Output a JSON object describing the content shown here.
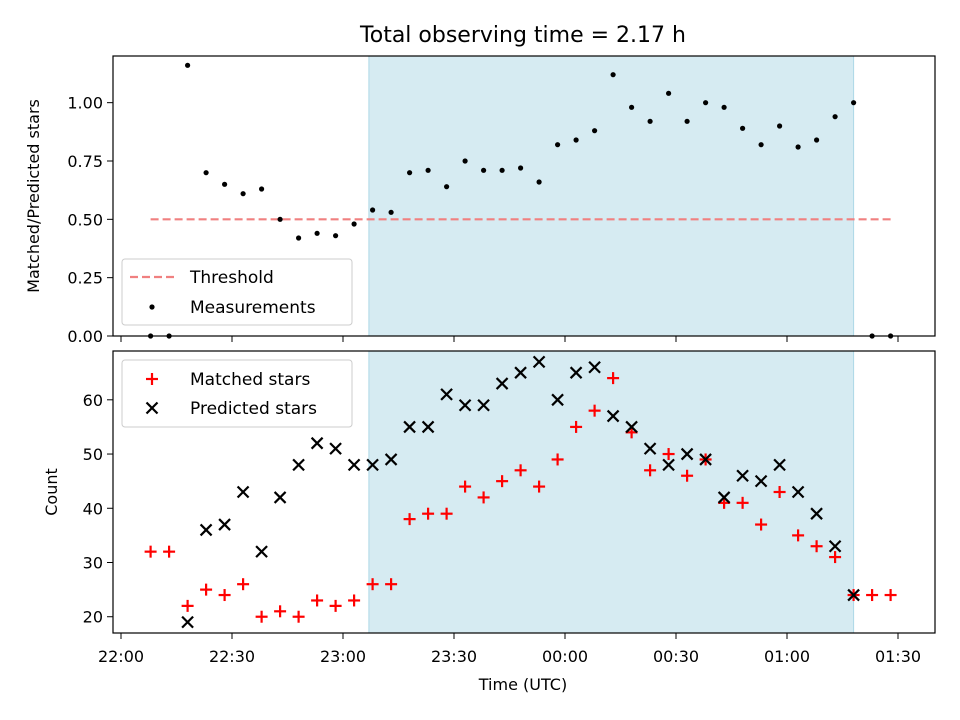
{
  "chart_data": [
    {
      "type": "scatter",
      "title": "Total observing time = 2.17 h",
      "ylabel": "Matched/Predicted stars",
      "xlabel": "",
      "ylim": [
        0,
        1.2
      ],
      "yticks": [
        "0.00",
        "0.25",
        "0.50",
        "0.75",
        "1.00"
      ],
      "highlight_span": {
        "start": "23:07",
        "end": "01:18",
        "color": "#add8e6"
      },
      "legend_position": "lower-left",
      "series": [
        {
          "name": "Threshold",
          "style": "dashed-line",
          "color": "#f08080",
          "x": [
            "22:08",
            "01:28"
          ],
          "y": [
            0.5,
            0.5
          ]
        },
        {
          "name": "Measurements",
          "style": "dot",
          "color": "#000000",
          "x": [
            "22:08",
            "22:13",
            "22:18",
            "22:23",
            "22:28",
            "22:33",
            "22:38",
            "22:43",
            "22:48",
            "22:53",
            "22:58",
            "23:03",
            "23:08",
            "23:13",
            "23:18",
            "23:23",
            "23:28",
            "23:33",
            "23:38",
            "23:43",
            "23:48",
            "23:53",
            "23:58",
            "00:03",
            "00:08",
            "00:13",
            "00:18",
            "00:23",
            "00:28",
            "00:33",
            "00:38",
            "00:43",
            "00:48",
            "00:53",
            "00:58",
            "01:03",
            "01:08",
            "01:13",
            "01:18",
            "01:23",
            "01:28"
          ],
          "y": [
            0.0,
            0.0,
            1.16,
            0.7,
            0.65,
            0.61,
            0.63,
            0.5,
            0.42,
            0.44,
            0.43,
            0.48,
            0.54,
            0.53,
            0.7,
            0.71,
            0.64,
            0.75,
            0.71,
            0.71,
            0.72,
            0.66,
            0.82,
            0.84,
            0.88,
            1.12,
            0.98,
            0.92,
            1.04,
            0.92,
            1.0,
            0.98,
            0.89,
            0.82,
            0.9,
            0.81,
            0.84,
            0.94,
            1.0,
            0.0,
            0.0
          ]
        }
      ]
    },
    {
      "type": "scatter",
      "title": "",
      "ylabel": "Count",
      "xlabel": "Time (UTC)",
      "ylim": [
        17,
        69
      ],
      "yticks": [
        "20",
        "30",
        "40",
        "50",
        "60"
      ],
      "xticks": [
        "22:00",
        "22:30",
        "23:00",
        "23:30",
        "00:00",
        "00:30",
        "01:00",
        "01:30"
      ],
      "highlight_span": {
        "start": "23:07",
        "end": "01:18",
        "color": "#add8e6"
      },
      "legend_position": "upper-left",
      "series": [
        {
          "name": "Matched stars",
          "style": "plus",
          "color": "#ff0000",
          "x": [
            "22:08",
            "22:13",
            "22:18",
            "22:23",
            "22:28",
            "22:33",
            "22:38",
            "22:43",
            "22:48",
            "22:53",
            "22:58",
            "23:03",
            "23:08",
            "23:13",
            "23:18",
            "23:23",
            "23:28",
            "23:33",
            "23:38",
            "23:43",
            "23:48",
            "23:53",
            "23:58",
            "00:03",
            "00:08",
            "00:13",
            "00:18",
            "00:23",
            "00:28",
            "00:33",
            "00:38",
            "00:43",
            "00:48",
            "00:53",
            "00:58",
            "01:03",
            "01:08",
            "01:13",
            "01:18",
            "01:23",
            "01:28"
          ],
          "y": [
            32,
            32,
            22,
            25,
            24,
            26,
            20,
            21,
            20,
            23,
            22,
            23,
            26,
            26,
            38,
            39,
            39,
            44,
            42,
            45,
            47,
            44,
            49,
            55,
            58,
            64,
            54,
            47,
            50,
            46,
            49,
            41,
            41,
            37,
            43,
            35,
            33,
            31,
            24,
            24,
            24
          ]
        },
        {
          "name": "Predicted stars",
          "style": "cross",
          "color": "#000000",
          "x": [
            "22:18",
            "22:23",
            "22:28",
            "22:33",
            "22:38",
            "22:43",
            "22:48",
            "22:53",
            "22:58",
            "23:03",
            "23:08",
            "23:13",
            "23:18",
            "23:23",
            "23:28",
            "23:33",
            "23:38",
            "23:43",
            "23:48",
            "23:53",
            "23:58",
            "00:03",
            "00:08",
            "00:13",
            "00:18",
            "00:23",
            "00:28",
            "00:33",
            "00:38",
            "00:43",
            "00:48",
            "00:53",
            "00:58",
            "01:03",
            "01:08",
            "01:13",
            "01:18"
          ],
          "y": [
            19,
            36,
            37,
            43,
            32,
            42,
            48,
            52,
            51,
            48,
            48,
            49,
            55,
            55,
            61,
            59,
            59,
            63,
            65,
            67,
            60,
            65,
            66,
            57,
            55,
            51,
            48,
            50,
            49,
            42,
            46,
            45,
            48,
            43,
            39,
            33,
            24
          ]
        }
      ]
    }
  ]
}
